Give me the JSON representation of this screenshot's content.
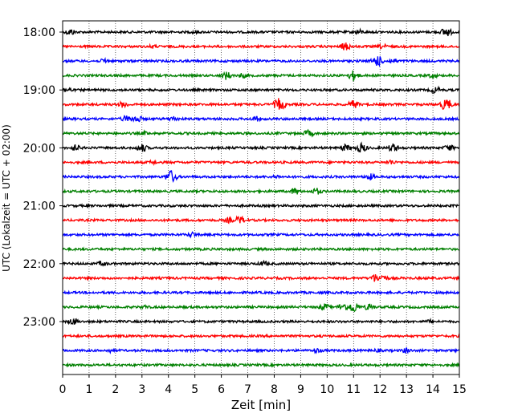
{
  "chart_data": {
    "type": "line",
    "title": "",
    "xlabel": "Zeit  [min]",
    "ylabel": "UTC (Lokalzeit = UTC + 02:00)",
    "xlim": [
      0,
      15
    ],
    "x_ticks": [
      0,
      1,
      2,
      3,
      4,
      5,
      6,
      7,
      8,
      9,
      10,
      11,
      12,
      13,
      14,
      15
    ],
    "y_ticks": [
      "18:00",
      "19:00",
      "20:00",
      "21:00",
      "22:00",
      "23:00"
    ],
    "grid": "vertical dotted at each minute",
    "trace_interval_min": 15,
    "series": [
      {
        "start": "18:00",
        "color": "#000000",
        "events": [
          [
            0.3,
            5
          ],
          [
            5.0,
            3
          ],
          [
            11.2,
            4
          ],
          [
            14.5,
            7
          ]
        ]
      },
      {
        "start": "18:15",
        "color": "#ff0000",
        "events": [
          [
            3.4,
            3
          ],
          [
            10.7,
            6
          ],
          [
            12.1,
            4
          ]
        ]
      },
      {
        "start": "18:30",
        "color": "#0000ff",
        "events": [
          [
            1.6,
            4
          ],
          [
            11.9,
            8
          ],
          [
            12.5,
            4
          ]
        ]
      },
      {
        "start": "18:45",
        "color": "#008000",
        "events": [
          [
            6.2,
            6
          ],
          [
            6.8,
            4
          ],
          [
            11.0,
            7
          ],
          [
            14.0,
            4
          ]
        ]
      },
      {
        "start": "19:00",
        "color": "#000000",
        "events": [
          [
            0.2,
            4
          ],
          [
            14.1,
            5
          ]
        ]
      },
      {
        "start": "19:15",
        "color": "#ff0000",
        "events": [
          [
            2.3,
            5
          ],
          [
            8.2,
            9
          ],
          [
            11.0,
            6
          ],
          [
            14.5,
            9
          ]
        ]
      },
      {
        "start": "19:30",
        "color": "#0000ff",
        "events": [
          [
            2.4,
            5
          ],
          [
            2.8,
            6
          ],
          [
            4.2,
            4
          ],
          [
            7.3,
            4
          ]
        ]
      },
      {
        "start": "19:45",
        "color": "#008000",
        "events": [
          [
            3.1,
            3
          ],
          [
            9.3,
            5
          ]
        ]
      },
      {
        "start": "20:00",
        "color": "#000000",
        "events": [
          [
            0.5,
            5
          ],
          [
            3.0,
            6
          ],
          [
            10.7,
            5
          ],
          [
            11.3,
            7
          ],
          [
            12.5,
            6
          ],
          [
            14.6,
            5
          ]
        ]
      },
      {
        "start": "20:15",
        "color": "#ff0000",
        "events": [
          [
            3.4,
            3
          ],
          [
            12.4,
            4
          ]
        ]
      },
      {
        "start": "20:30",
        "color": "#0000ff",
        "events": [
          [
            4.1,
            9
          ],
          [
            8.1,
            3
          ],
          [
            11.6,
            5
          ]
        ]
      },
      {
        "start": "20:45",
        "color": "#008000",
        "events": [
          [
            8.8,
            5
          ],
          [
            9.6,
            5
          ]
        ]
      },
      {
        "start": "21:00",
        "color": "#000000",
        "events": []
      },
      {
        "start": "21:15",
        "color": "#ff0000",
        "events": [
          [
            6.3,
            4
          ],
          [
            6.7,
            6
          ]
        ]
      },
      {
        "start": "21:30",
        "color": "#0000ff",
        "events": [
          [
            4.9,
            4
          ]
        ]
      },
      {
        "start": "21:45",
        "color": "#008000",
        "events": []
      },
      {
        "start": "22:00",
        "color": "#000000",
        "events": [
          [
            1.5,
            4
          ],
          [
            7.6,
            4
          ]
        ]
      },
      {
        "start": "22:15",
        "color": "#ff0000",
        "events": [
          [
            11.8,
            6
          ],
          [
            12.1,
            5
          ]
        ]
      },
      {
        "start": "22:30",
        "color": "#0000ff",
        "events": []
      },
      {
        "start": "22:45",
        "color": "#008000",
        "events": [
          [
            9.9,
            5
          ],
          [
            10.6,
            6
          ],
          [
            11.0,
            8
          ],
          [
            11.6,
            5
          ],
          [
            3.1,
            3
          ]
        ]
      },
      {
        "start": "23:00",
        "color": "#000000",
        "events": [
          [
            0.4,
            5
          ],
          [
            13.9,
            3
          ]
        ]
      },
      {
        "start": "23:15",
        "color": "#ff0000",
        "events": []
      },
      {
        "start": "23:30",
        "color": "#0000ff",
        "events": [
          [
            1.8,
            3
          ],
          [
            9.6,
            4
          ],
          [
            13.0,
            4
          ],
          [
            11.9,
            3
          ]
        ]
      },
      {
        "start": "23:45",
        "color": "#008000",
        "events": []
      }
    ]
  }
}
